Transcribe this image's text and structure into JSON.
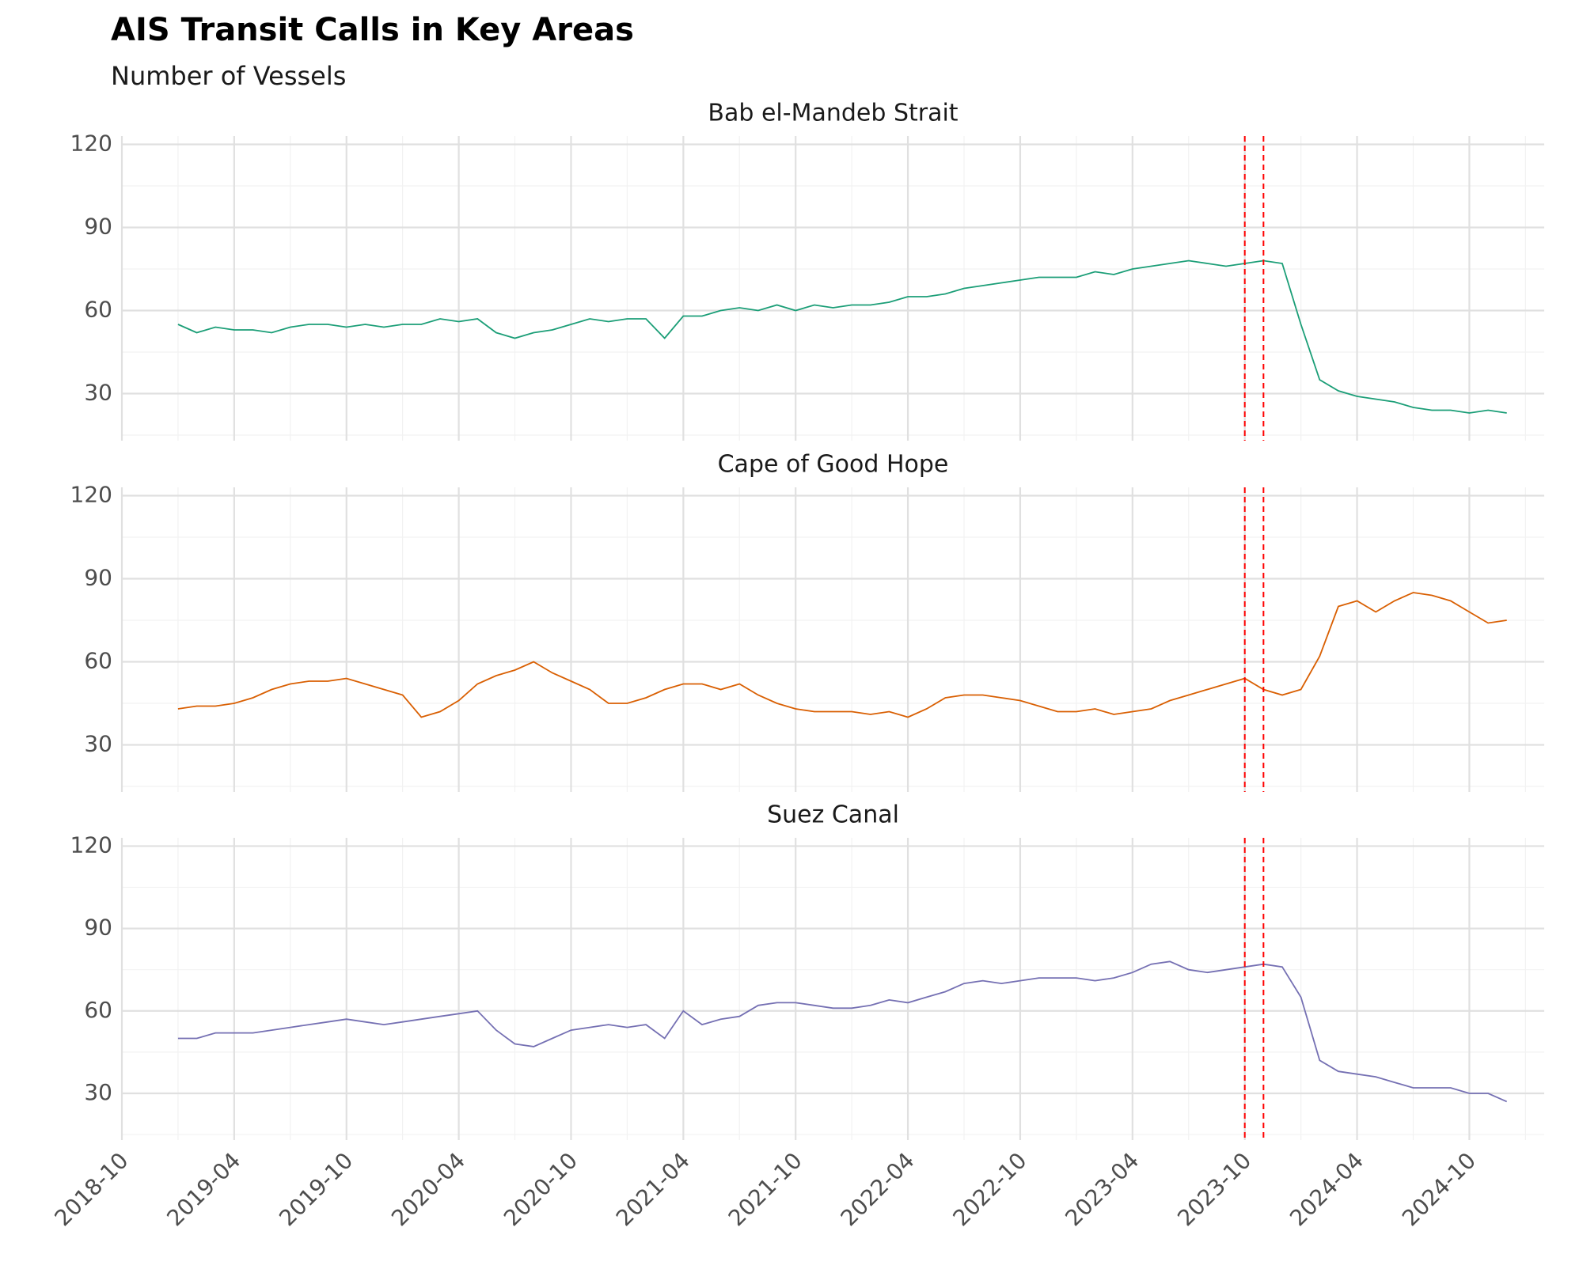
{
  "title": "AIS Transit Calls in Key Areas",
  "subtitle": "Number of Vessels",
  "chart_data": [
    {
      "type": "line",
      "title": "Bab el-Mandeb Strait",
      "color": "#1b9e77",
      "x": [
        "2019-01",
        "2019-02",
        "2019-03",
        "2019-04",
        "2019-05",
        "2019-06",
        "2019-07",
        "2019-08",
        "2019-09",
        "2019-10",
        "2019-11",
        "2019-12",
        "2020-01",
        "2020-02",
        "2020-03",
        "2020-04",
        "2020-05",
        "2020-06",
        "2020-07",
        "2020-08",
        "2020-09",
        "2020-10",
        "2020-11",
        "2020-12",
        "2021-01",
        "2021-02",
        "2021-03",
        "2021-04",
        "2021-05",
        "2021-06",
        "2021-07",
        "2021-08",
        "2021-09",
        "2021-10",
        "2021-11",
        "2021-12",
        "2022-01",
        "2022-02",
        "2022-03",
        "2022-04",
        "2022-05",
        "2022-06",
        "2022-07",
        "2022-08",
        "2022-09",
        "2022-10",
        "2022-11",
        "2022-12",
        "2023-01",
        "2023-02",
        "2023-03",
        "2023-04",
        "2023-05",
        "2023-06",
        "2023-07",
        "2023-08",
        "2023-09",
        "2023-10",
        "2023-11",
        "2023-12",
        "2024-01",
        "2024-02",
        "2024-03",
        "2024-04",
        "2024-05",
        "2024-06",
        "2024-07",
        "2024-08",
        "2024-09",
        "2024-10",
        "2024-11",
        "2024-12"
      ],
      "values": [
        55,
        52,
        54,
        53,
        53,
        52,
        54,
        55,
        55,
        54,
        55,
        54,
        55,
        55,
        57,
        56,
        57,
        52,
        50,
        52,
        53,
        55,
        57,
        56,
        57,
        57,
        50,
        58,
        58,
        60,
        61,
        60,
        62,
        60,
        62,
        61,
        62,
        62,
        63,
        65,
        65,
        66,
        68,
        69,
        70,
        71,
        72,
        72,
        72,
        74,
        73,
        75,
        76,
        77,
        78,
        77,
        76,
        77,
        78,
        77,
        55,
        35,
        31,
        29,
        28,
        27,
        25,
        24,
        24,
        23,
        24,
        23
      ],
      "xlim": [
        "2018-10",
        "2025-02"
      ],
      "xticks": [
        "2018-10",
        "2019-04",
        "2019-10",
        "2020-04",
        "2020-10",
        "2021-04",
        "2021-10",
        "2022-04",
        "2022-10",
        "2023-04",
        "2023-10",
        "2024-04",
        "2024-10"
      ],
      "ylim": [
        13,
        123
      ],
      "yticks": [
        30,
        60,
        90,
        120
      ],
      "grid": true,
      "vlines": [
        "2023-10",
        "2023-11"
      ],
      "vline_color": "#ff0000"
    },
    {
      "type": "line",
      "title": "Cape of Good Hope",
      "color": "#d95f02",
      "x": [
        "2019-01",
        "2019-02",
        "2019-03",
        "2019-04",
        "2019-05",
        "2019-06",
        "2019-07",
        "2019-08",
        "2019-09",
        "2019-10",
        "2019-11",
        "2019-12",
        "2020-01",
        "2020-02",
        "2020-03",
        "2020-04",
        "2020-05",
        "2020-06",
        "2020-07",
        "2020-08",
        "2020-09",
        "2020-10",
        "2020-11",
        "2020-12",
        "2021-01",
        "2021-02",
        "2021-03",
        "2021-04",
        "2021-05",
        "2021-06",
        "2021-07",
        "2021-08",
        "2021-09",
        "2021-10",
        "2021-11",
        "2021-12",
        "2022-01",
        "2022-02",
        "2022-03",
        "2022-04",
        "2022-05",
        "2022-06",
        "2022-07",
        "2022-08",
        "2022-09",
        "2022-10",
        "2022-11",
        "2022-12",
        "2023-01",
        "2023-02",
        "2023-03",
        "2023-04",
        "2023-05",
        "2023-06",
        "2023-07",
        "2023-08",
        "2023-09",
        "2023-10",
        "2023-11",
        "2023-12",
        "2024-01",
        "2024-02",
        "2024-03",
        "2024-04",
        "2024-05",
        "2024-06",
        "2024-07",
        "2024-08",
        "2024-09",
        "2024-10",
        "2024-11",
        "2024-12"
      ],
      "values": [
        43,
        44,
        44,
        45,
        47,
        50,
        52,
        53,
        53,
        54,
        52,
        50,
        48,
        40,
        42,
        46,
        52,
        55,
        57,
        60,
        56,
        53,
        50,
        45,
        45,
        47,
        50,
        52,
        52,
        50,
        52,
        48,
        45,
        43,
        42,
        42,
        42,
        41,
        42,
        40,
        43,
        47,
        48,
        48,
        47,
        46,
        44,
        42,
        42,
        43,
        41,
        42,
        43,
        46,
        48,
        50,
        52,
        54,
        50,
        48,
        50,
        62,
        80,
        82,
        78,
        82,
        85,
        84,
        82,
        78,
        74,
        75
      ],
      "xlim": [
        "2018-10",
        "2025-02"
      ],
      "xticks": [
        "2018-10",
        "2019-04",
        "2019-10",
        "2020-04",
        "2020-10",
        "2021-04",
        "2021-10",
        "2022-04",
        "2022-10",
        "2023-04",
        "2023-10",
        "2024-04",
        "2024-10"
      ],
      "ylim": [
        13,
        123
      ],
      "yticks": [
        30,
        60,
        90,
        120
      ],
      "grid": true,
      "vlines": [
        "2023-10",
        "2023-11"
      ],
      "vline_color": "#ff0000"
    },
    {
      "type": "line",
      "title": "Suez Canal",
      "color": "#7570b3",
      "x": [
        "2019-01",
        "2019-02",
        "2019-03",
        "2019-04",
        "2019-05",
        "2019-06",
        "2019-07",
        "2019-08",
        "2019-09",
        "2019-10",
        "2019-11",
        "2019-12",
        "2020-01",
        "2020-02",
        "2020-03",
        "2020-04",
        "2020-05",
        "2020-06",
        "2020-07",
        "2020-08",
        "2020-09",
        "2020-10",
        "2020-11",
        "2020-12",
        "2021-01",
        "2021-02",
        "2021-03",
        "2021-04",
        "2021-05",
        "2021-06",
        "2021-07",
        "2021-08",
        "2021-09",
        "2021-10",
        "2021-11",
        "2021-12",
        "2022-01",
        "2022-02",
        "2022-03",
        "2022-04",
        "2022-05",
        "2022-06",
        "2022-07",
        "2022-08",
        "2022-09",
        "2022-10",
        "2022-11",
        "2022-12",
        "2023-01",
        "2023-02",
        "2023-03",
        "2023-04",
        "2023-05",
        "2023-06",
        "2023-07",
        "2023-08",
        "2023-09",
        "2023-10",
        "2023-11",
        "2023-12",
        "2024-01",
        "2024-02",
        "2024-03",
        "2024-04",
        "2024-05",
        "2024-06",
        "2024-07",
        "2024-08",
        "2024-09",
        "2024-10",
        "2024-11",
        "2024-12"
      ],
      "values": [
        50,
        50,
        52,
        52,
        52,
        53,
        54,
        55,
        56,
        57,
        56,
        55,
        56,
        57,
        58,
        59,
        60,
        53,
        48,
        47,
        50,
        53,
        54,
        55,
        54,
        55,
        50,
        60,
        55,
        57,
        58,
        62,
        63,
        63,
        62,
        61,
        61,
        62,
        64,
        63,
        65,
        67,
        70,
        71,
        70,
        71,
        72,
        72,
        72,
        71,
        72,
        74,
        77,
        78,
        75,
        74,
        75,
        76,
        77,
        76,
        65,
        42,
        38,
        37,
        36,
        34,
        32,
        32,
        32,
        30,
        30,
        27
      ],
      "xlim": [
        "2018-10",
        "2025-02"
      ],
      "xticks": [
        "2018-10",
        "2019-04",
        "2019-10",
        "2020-04",
        "2020-10",
        "2021-04",
        "2021-10",
        "2022-04",
        "2022-10",
        "2023-04",
        "2023-10",
        "2024-04",
        "2024-10"
      ],
      "ylim": [
        13,
        123
      ],
      "yticks": [
        30,
        60,
        90,
        120
      ],
      "grid": true,
      "vlines": [
        "2023-10",
        "2023-11"
      ],
      "vline_color": "#ff0000"
    }
  ]
}
